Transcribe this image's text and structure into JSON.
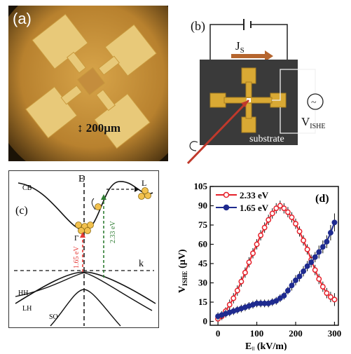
{
  "panel_a": {
    "label": "(a)",
    "scale_bar": "↕ 200μm"
  },
  "panel_b": {
    "label": "(b)",
    "current_label": "J",
    "current_sub": "S",
    "voltage_label": "V",
    "voltage_sub": "ISHE",
    "substrate_label": "substrate",
    "colors": {
      "dark": "#3a3a3a",
      "gold": "#d9a934",
      "arrow": "#c0392b"
    }
  },
  "panel_c": {
    "label": "(c)",
    "axis_e": "E",
    "axis_k": "k",
    "band_cb": "CB",
    "band_hh": "HH",
    "band_lh": "LH",
    "band_so": "SO",
    "valley_gamma": "Γ",
    "valley_l": "L",
    "energy_red": "1.65 eV",
    "energy_green": "2.33 eV",
    "colors": {
      "red": "#e53935",
      "green": "#2e7d32",
      "electron": "#f2c14e"
    }
  },
  "chart_data": {
    "type": "line",
    "panel_label": "(d)",
    "ylabel_main": "V",
    "ylabel_sub": "ISHE",
    "ylabel_unit": " (μV)",
    "xlabel_main": "E",
    "xlabel_sub": "||",
    "xlabel_unit": " (kV/m)",
    "xlim": [
      -20,
      310
    ],
    "ylim": [
      -3,
      105
    ],
    "xticks": [
      0,
      100,
      200,
      300
    ],
    "yticks": [
      0,
      15,
      30,
      45,
      60,
      75,
      90,
      105
    ],
    "series": [
      {
        "name": "2.33 eV",
        "color": "#e5202a",
        "x": [
          0,
          10,
          20,
          30,
          40,
          50,
          60,
          70,
          80,
          90,
          100,
          110,
          120,
          130,
          140,
          150,
          160,
          170,
          180,
          190,
          200,
          210,
          220,
          230,
          240,
          250,
          260,
          270,
          280,
          290,
          300
        ],
        "y": [
          2,
          4,
          8,
          13,
          18,
          24,
          31,
          38,
          46,
          53,
          60,
          67,
          73,
          79,
          84,
          88,
          90,
          88,
          85,
          81,
          76,
          70,
          63,
          56,
          48,
          40,
          33,
          27,
          22,
          19,
          17
        ],
        "err": [
          3,
          3,
          3,
          4,
          4,
          4,
          4,
          4,
          4,
          4,
          4,
          4,
          4,
          4,
          4,
          4,
          4,
          4,
          4,
          4,
          4,
          4,
          4,
          4,
          4,
          4,
          4,
          4,
          4,
          4,
          5
        ]
      },
      {
        "name": "1.65 eV",
        "color": "#1f2b8f",
        "x": [
          0,
          10,
          20,
          30,
          40,
          50,
          60,
          70,
          80,
          90,
          100,
          110,
          120,
          130,
          140,
          150,
          160,
          170,
          180,
          190,
          200,
          210,
          220,
          230,
          240,
          250,
          260,
          270,
          280,
          290,
          300
        ],
        "y": [
          4,
          5,
          6,
          7,
          8,
          9,
          10,
          11,
          12,
          13,
          14,
          14,
          14,
          14,
          15,
          16,
          18,
          20,
          24,
          28,
          32,
          35,
          39,
          43,
          46,
          50,
          54,
          58,
          62,
          69,
          77
        ],
        "err": [
          3,
          3,
          3,
          3,
          3,
          3,
          3,
          3,
          3,
          3,
          3,
          3,
          3,
          3,
          3,
          3,
          3,
          3,
          3,
          4,
          4,
          4,
          4,
          4,
          4,
          4,
          5,
          5,
          5,
          6,
          7
        ]
      }
    ]
  }
}
